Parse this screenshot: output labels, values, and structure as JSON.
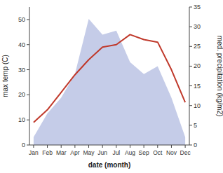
{
  "chart_data": {
    "type": "line",
    "xlabel": "date (month)",
    "ylabel": "max temp (C)",
    "y2label": "med. precipitation (kg/m2)",
    "categories": [
      "Jan",
      "Feb",
      "Mar",
      "Apr",
      "May",
      "Jun",
      "Jul",
      "Aug",
      "Sep",
      "Oct",
      "Nov",
      "Dec"
    ],
    "series": [
      {
        "type": "area",
        "axis": "y2",
        "color": "#c5cce8",
        "values": [
          2,
          8,
          12,
          18,
          32,
          28,
          29,
          21,
          18,
          20,
          12,
          2
        ]
      },
      {
        "type": "line",
        "color": "#c0392b",
        "values": [
          9,
          14,
          21,
          28,
          34,
          39,
          40,
          44,
          42,
          41,
          30,
          17
        ]
      }
    ],
    "ylim": [
      0,
      55
    ],
    "yticks": [
      0,
      10,
      20,
      30,
      40,
      50
    ],
    "y2lim": [
      0,
      35
    ],
    "y2ticks": [
      0,
      5,
      10,
      15,
      20,
      25,
      30,
      35
    ],
    "grid": false
  }
}
